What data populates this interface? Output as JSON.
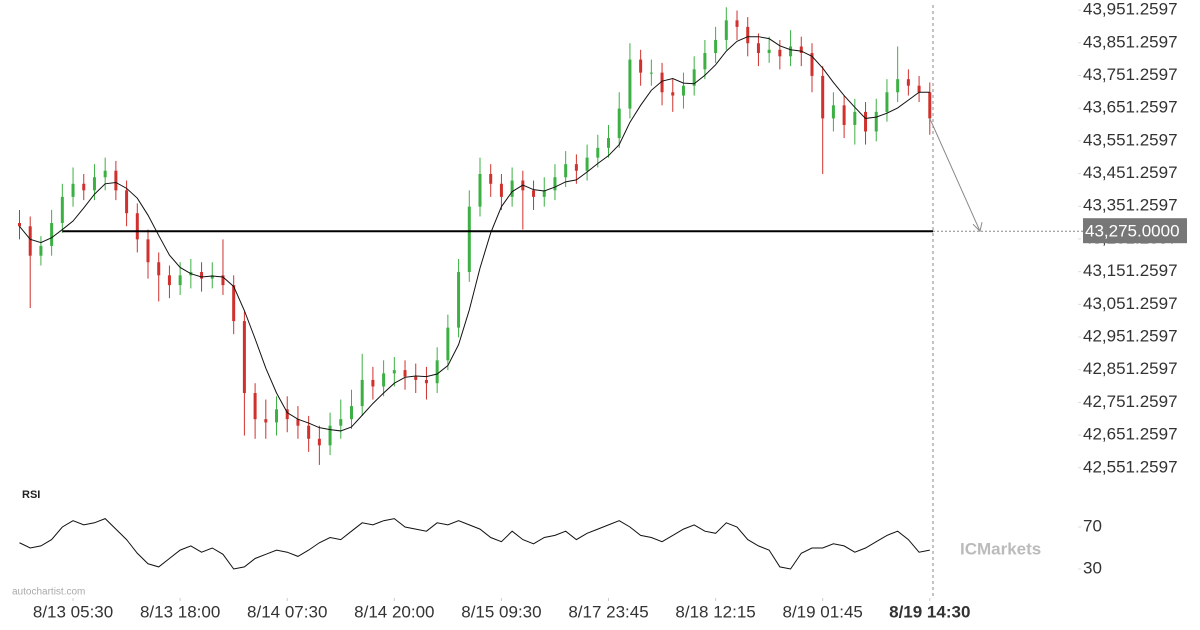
{
  "chart_data": {
    "type": "candlestick",
    "xlim": [
      -0.7,
      85.3
    ],
    "xticks": [
      {
        "value": 5,
        "label": "8/13 05:30"
      },
      {
        "value": 15,
        "label": "8/13 18:00"
      },
      {
        "value": 25,
        "label": "8/14 07:30"
      },
      {
        "value": 35,
        "label": "8/14 20:00"
      },
      {
        "value": 45,
        "label": "8/15 09:30"
      },
      {
        "value": 55,
        "label": "8/17 23:45"
      },
      {
        "value": 65,
        "label": "8/18 12:15"
      },
      {
        "value": 75,
        "label": "8/19 01:45"
      },
      {
        "value": 85,
        "label": "8/19 14:30"
      }
    ],
    "ylim": [
      42520,
      43970
    ],
    "yticks": [
      {
        "value": 43951.2597,
        "label": "43,951.2597"
      },
      {
        "value": 43851.2597,
        "label": "43,851.2597"
      },
      {
        "value": 43751.2597,
        "label": "43,751.2597"
      },
      {
        "value": 43651.2597,
        "label": "43,651.2597"
      },
      {
        "value": 43551.2597,
        "label": "43,551.2597"
      },
      {
        "value": 43451.2597,
        "label": "43,451.2597"
      },
      {
        "value": 43351.2597,
        "label": "43,351.2597"
      },
      {
        "value": 43251.2597,
        "label": "43,251.2597"
      },
      {
        "value": 43151.2597,
        "label": "43,151.2597"
      },
      {
        "value": 43051.2597,
        "label": "43,051.2597"
      },
      {
        "value": 42951.2597,
        "label": "42,951.2597"
      },
      {
        "value": 42851.2597,
        "label": "42,851.2597"
      },
      {
        "value": 42751.2597,
        "label": "42,751.2597"
      },
      {
        "value": 42651.2597,
        "label": "42,651.2597"
      },
      {
        "value": 42551.2597,
        "label": "42,551.2597"
      }
    ],
    "up_color": "#3cb043",
    "down_color": "#d0312d",
    "open": [
      43300,
      43290,
      43200,
      43230,
      43300,
      43380,
      43420,
      43400,
      43440,
      43460,
      43400,
      43330,
      43250,
      43180,
      43140,
      43110,
      43140,
      43150,
      43130,
      43140,
      43110,
      43000,
      42780,
      42700,
      42690,
      42730,
      42700,
      42680,
      42640,
      42620,
      42680,
      42700,
      42740,
      42820,
      42800,
      42840,
      42850,
      42830,
      42820,
      42810,
      42880,
      42980,
      43150,
      43350,
      43450,
      43420,
      43380,
      43430,
      43400,
      43380,
      43400,
      43440,
      43480,
      43460,
      43500,
      43530,
      43560,
      43650,
      43800,
      43760,
      43760,
      43700,
      43690,
      43720,
      43770,
      43820,
      43860,
      43920,
      43900,
      43850,
      43820,
      43830,
      43810,
      43840,
      43820,
      43750,
      43620,
      43660,
      43600,
      43640,
      43580,
      43640,
      43700,
      43740,
      43720,
      43700
    ],
    "high": [
      43340,
      43320,
      43260,
      43340,
      43420,
      43470,
      43450,
      43480,
      43500,
      43490,
      43430,
      43360,
      43280,
      43210,
      43170,
      43180,
      43190,
      43180,
      43180,
      43250,
      43140,
      43030,
      42810,
      42760,
      42770,
      42770,
      42740,
      42710,
      42680,
      42720,
      42760,
      42790,
      42900,
      42860,
      42880,
      42890,
      42880,
      42870,
      42860,
      42920,
      43020,
      43190,
      43400,
      43500,
      43480,
      43450,
      43470,
      43460,
      43430,
      43440,
      43480,
      43520,
      43510,
      43540,
      43570,
      43600,
      43700,
      43850,
      43830,
      43800,
      43790,
      43740,
      43760,
      43810,
      43860,
      43900,
      43960,
      43950,
      43930,
      43880,
      43870,
      43860,
      43890,
      43870,
      43850,
      43780,
      43700,
      43690,
      43680,
      43670,
      43680,
      43740,
      43840,
      43770,
      43750,
      43730
    ],
    "low": [
      43250,
      43040,
      43170,
      43200,
      43270,
      43350,
      43370,
      43370,
      43400,
      43370,
      43290,
      43210,
      43130,
      43060,
      43070,
      43080,
      43100,
      43090,
      43100,
      43080,
      42960,
      42650,
      42640,
      42640,
      42650,
      42660,
      42640,
      42600,
      42560,
      42590,
      42640,
      42670,
      42710,
      42760,
      42770,
      42800,
      42790,
      42780,
      42760,
      42780,
      42850,
      42950,
      43120,
      43320,
      43380,
      43340,
      43350,
      43280,
      43340,
      43350,
      43370,
      43410,
      43420,
      43430,
      43470,
      43500,
      43530,
      43620,
      43720,
      43720,
      43660,
      43640,
      43650,
      43690,
      43740,
      43790,
      43830,
      43860,
      43810,
      43780,
      43790,
      43770,
      43780,
      43780,
      43700,
      43450,
      43580,
      43560,
      43540,
      43540,
      43550,
      43610,
      43670,
      43690,
      43670,
      43570
    ],
    "close": [
      43290,
      43200,
      43230,
      43300,
      43380,
      43420,
      43400,
      43440,
      43460,
      43400,
      43330,
      43250,
      43180,
      43140,
      43110,
      43140,
      43150,
      43130,
      43140,
      43110,
      43000,
      42780,
      42700,
      42690,
      42730,
      42700,
      42680,
      42640,
      42620,
      42680,
      42700,
      42740,
      42820,
      42800,
      42840,
      42850,
      42830,
      42820,
      42810,
      42880,
      42980,
      43150,
      43350,
      43450,
      43420,
      43380,
      43430,
      43400,
      43380,
      43400,
      43440,
      43480,
      43460,
      43500,
      43530,
      43560,
      43650,
      43800,
      43760,
      43760,
      43700,
      43690,
      43720,
      43770,
      43820,
      43860,
      43920,
      43900,
      43850,
      43820,
      43830,
      43810,
      43840,
      43820,
      43750,
      43620,
      43660,
      43600,
      43640,
      43580,
      43640,
      43700,
      43740,
      43720,
      43700,
      43620
    ],
    "ma": [
      43290,
      43250,
      43240,
      43255,
      43280,
      43306,
      43346,
      43388,
      43420,
      43424,
      43406,
      43376,
      43324,
      43262,
      43202,
      43164,
      43145,
      43135,
      43138,
      43135,
      43106,
      43032,
      42946,
      42856,
      42780,
      42720,
      42700,
      42688,
      42674,
      42668,
      42664,
      42676,
      42712,
      42748,
      42780,
      42810,
      42828,
      42832,
      42830,
      42838,
      42864,
      42928,
      43034,
      43162,
      43270,
      43350,
      43396,
      43416,
      43402,
      43398,
      43410,
      43426,
      43432,
      43456,
      43482,
      43506,
      43540,
      43608,
      43660,
      43706,
      43734,
      43742,
      43728,
      43726,
      43752,
      43784,
      43826,
      43856,
      43870,
      43870,
      43864,
      43842,
      43830,
      43826,
      43810,
      43774,
      43730,
      43690,
      43654,
      43620,
      43624,
      43636,
      43652,
      43676,
      43700,
      43700
    ],
    "level": {
      "value": 43275,
      "label": "43,275.0000"
    },
    "rsi": {
      "title": "RSI",
      "ylim": [
        10,
        90
      ],
      "yticks": [
        70,
        30
      ],
      "values": [
        55,
        50,
        52,
        58,
        70,
        76,
        72,
        74,
        78,
        68,
        58,
        45,
        35,
        32,
        40,
        48,
        52,
        46,
        50,
        44,
        30,
        32,
        40,
        44,
        48,
        46,
        42,
        48,
        55,
        60,
        58,
        66,
        74,
        72,
        76,
        78,
        70,
        68,
        66,
        74,
        72,
        76,
        72,
        68,
        60,
        56,
        66,
        58,
        54,
        60,
        62,
        66,
        58,
        64,
        68,
        72,
        76,
        70,
        62,
        60,
        56,
        62,
        68,
        72,
        66,
        64,
        74,
        70,
        58,
        52,
        48,
        32,
        30,
        45,
        50,
        50,
        54,
        52,
        46,
        50,
        56,
        62,
        66,
        58,
        46,
        48
      ]
    },
    "watermark": "autochartist.com",
    "logo": "ICMarkets"
  }
}
